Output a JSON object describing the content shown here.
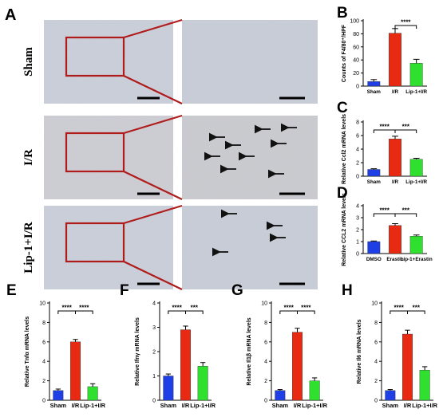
{
  "micrographs": {
    "panel_letter": "A",
    "rows": [
      {
        "label": "Sham",
        "arrows": 0
      },
      {
        "label": "I/R",
        "arrows": 9
      },
      {
        "label": "Lip-1+I/R",
        "arrows": 4
      }
    ]
  },
  "colors": {
    "blue": "#1f3fe6",
    "red": "#e82a12",
    "green": "#2fe02f",
    "box": "#b01c1c"
  },
  "chart_data": [
    {
      "panel": "B",
      "type": "bar",
      "categories": [
        "Sham",
        "I/R",
        "Lip-1+I/R"
      ],
      "values": [
        7,
        81,
        35
      ],
      "errors": [
        3,
        7,
        6
      ],
      "ylim": [
        0,
        100
      ],
      "yticks": [
        0,
        20,
        40,
        60,
        80,
        100
      ],
      "ylabel": "Counts of F4/80⁺/HPF",
      "sig": [
        {
          "from": 1,
          "to": 2,
          "text": "****"
        }
      ]
    },
    {
      "panel": "C",
      "type": "bar",
      "categories": [
        "Sham",
        "I/R",
        "Lip-1+I/R"
      ],
      "values": [
        1.0,
        5.5,
        2.5
      ],
      "errors": [
        0.1,
        0.4,
        0.15
      ],
      "ylim": [
        0,
        8
      ],
      "yticks": [
        0,
        2,
        4,
        6,
        8
      ],
      "ylabel": "Relative Ccl2 mRNA levels",
      "sig": [
        {
          "from": 0,
          "to": 1,
          "text": "****"
        },
        {
          "from": 1,
          "to": 2,
          "text": "***"
        }
      ]
    },
    {
      "panel": "D",
      "type": "bar",
      "categories": [
        "DMSO",
        "Erastin",
        "Lip-1+Erastin"
      ],
      "values": [
        1.0,
        2.35,
        1.45
      ],
      "errors": [
        0.05,
        0.15,
        0.1
      ],
      "ylim": [
        0,
        4
      ],
      "yticks": [
        0,
        1,
        2,
        3,
        4
      ],
      "ylabel": "Relative CCL2 mRNA levels",
      "sig": [
        {
          "from": 0,
          "to": 1,
          "text": "****"
        },
        {
          "from": 1,
          "to": 2,
          "text": "***"
        }
      ]
    },
    {
      "panel": "E",
      "type": "bar",
      "categories": [
        "Sham",
        "I/R",
        "Lip-1+I/R"
      ],
      "values": [
        1.0,
        6.0,
        1.4
      ],
      "errors": [
        0.15,
        0.25,
        0.3
      ],
      "ylim": [
        0,
        10
      ],
      "yticks": [
        0,
        2,
        4,
        6,
        8,
        10
      ],
      "ylabel": "Relative Tnfα mRNA levels",
      "sig": [
        {
          "from": 0,
          "to": 1,
          "text": "****"
        },
        {
          "from": 1,
          "to": 2,
          "text": "****"
        }
      ]
    },
    {
      "panel": "F",
      "type": "bar",
      "categories": [
        "Sham",
        "I/R",
        "Lip-1+I/R"
      ],
      "values": [
        1.0,
        2.9,
        1.4
      ],
      "errors": [
        0.08,
        0.15,
        0.15
      ],
      "ylim": [
        0,
        4
      ],
      "yticks": [
        0,
        1,
        2,
        3,
        4
      ],
      "ylabel": "Relative Ifnγ mRNA levels",
      "sig": [
        {
          "from": 0,
          "to": 1,
          "text": "****"
        },
        {
          "from": 1,
          "to": 2,
          "text": "***"
        }
      ]
    },
    {
      "panel": "G",
      "type": "bar",
      "categories": [
        "Sham",
        "I/R",
        "Lip-1+I/R"
      ],
      "values": [
        1.0,
        7.0,
        2.0
      ],
      "errors": [
        0.1,
        0.4,
        0.3
      ],
      "ylim": [
        0,
        10
      ],
      "yticks": [
        0,
        2,
        4,
        6,
        8,
        10
      ],
      "ylabel": "Relative Il1β mRNA levels",
      "sig": [
        {
          "from": 0,
          "to": 1,
          "text": "****"
        },
        {
          "from": 1,
          "to": 2,
          "text": "****"
        }
      ]
    },
    {
      "panel": "H",
      "type": "bar",
      "categories": [
        "Sham",
        "I/R",
        "Lip-1+I/R"
      ],
      "values": [
        1.0,
        6.8,
        3.1
      ],
      "errors": [
        0.1,
        0.4,
        0.35
      ],
      "ylim": [
        0,
        10
      ],
      "yticks": [
        0,
        2,
        4,
        6,
        8,
        10
      ],
      "ylabel": "Relative Il6 mRNA levels",
      "sig": [
        {
          "from": 0,
          "to": 1,
          "text": "****"
        },
        {
          "from": 1,
          "to": 2,
          "text": "***"
        }
      ]
    }
  ]
}
